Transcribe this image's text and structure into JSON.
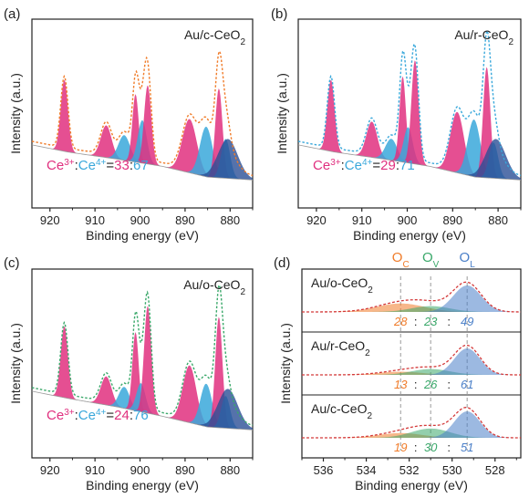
{
  "colors": {
    "magenta": "#e0307f",
    "cyan": "#3aa8db",
    "navy": "#2a4f96",
    "orange": "#f07c2a",
    "green": "#3aa86a",
    "blue": "#4a7fc8",
    "fit_red": "#d43a3a",
    "grey": "#9a9a9a"
  },
  "chart_data": [
    {
      "panel_label": "(a)",
      "type": "line",
      "sample": "Au/c-CeO",
      "sample_sub": "2",
      "xlabel": "Binding energy (eV)",
      "ylabel": "Intensity (a.u.)",
      "xlim": [
        924,
        875
      ],
      "xticks": [
        920,
        910,
        900,
        890,
        880
      ],
      "envelope_color": "#f07c2a",
      "ratio": {
        "ce3": "Ce",
        "ce3_sup": "3+",
        "colon1": ":",
        "ce4": "Ce",
        "ce4_sup": "4+",
        "eq": "=",
        "ce3_val": "33",
        "colon2": ":",
        "ce4_val": "67"
      },
      "baseline": [
        [
          924,
          0.55
        ],
        [
          916,
          0.45
        ],
        [
          905,
          0.35
        ],
        [
          895,
          0.25
        ],
        [
          885,
          0.1
        ],
        [
          875,
          0.06
        ]
      ],
      "peaks": [
        {
          "species": "Ce4+",
          "center": 916.8,
          "height": 1.0,
          "width": 0.8
        },
        {
          "species": "Ce4+",
          "center": 907.5,
          "height": 0.45,
          "width": 1.2
        },
        {
          "species": "Ce3+",
          "center": 903.5,
          "height": 0.35,
          "width": 1.3
        },
        {
          "species": "Ce4+",
          "center": 901.0,
          "height": 0.95,
          "width": 0.7
        },
        {
          "species": "Ce3+",
          "center": 899.5,
          "height": 0.6,
          "width": 1.0
        },
        {
          "species": "Ce4+",
          "center": 898.3,
          "height": 1.1,
          "width": 0.8
        },
        {
          "species": "Ce4+",
          "center": 889.0,
          "height": 0.75,
          "width": 1.6
        },
        {
          "species": "Ce3+",
          "center": 885.3,
          "height": 0.7,
          "width": 1.4
        },
        {
          "species": "Ce4+",
          "center": 882.5,
          "height": 1.25,
          "width": 0.8
        },
        {
          "species": "Ce3+",
          "center": 881.0,
          "height": 0.55,
          "width": 1.0
        }
      ]
    },
    {
      "panel_label": "(b)",
      "type": "line",
      "sample": "Au/r-CeO",
      "sample_sub": "2",
      "xlabel": "Binding energy (eV)",
      "ylabel": "Intensity (a.u.)",
      "xlim": [
        924,
        875
      ],
      "xticks": [
        920,
        910,
        900,
        890,
        880
      ],
      "envelope_color": "#3aa8db",
      "ratio": {
        "ce3": "Ce",
        "ce3_sup": "3+",
        "colon1": ":",
        "ce4": "Ce",
        "ce4_sup": "4+",
        "eq": "=",
        "ce3_val": "29",
        "colon2": ":",
        "ce4_val": "71"
      },
      "baseline": [
        [
          924,
          0.55
        ],
        [
          916,
          0.45
        ],
        [
          905,
          0.35
        ],
        [
          895,
          0.25
        ],
        [
          885,
          0.1
        ],
        [
          875,
          0.06
        ]
      ],
      "peaks": [
        {
          "species": "Ce4+",
          "center": 916.8,
          "height": 1.0,
          "width": 0.8
        },
        {
          "species": "Ce4+",
          "center": 907.8,
          "height": 0.5,
          "width": 1.2
        },
        {
          "species": "Ce3+",
          "center": 903.5,
          "height": 0.3,
          "width": 1.3
        },
        {
          "species": "Ce4+",
          "center": 901.0,
          "height": 1.2,
          "width": 0.7
        },
        {
          "species": "Ce3+",
          "center": 899.8,
          "height": 0.5,
          "width": 1.0
        },
        {
          "species": "Ce4+",
          "center": 898.3,
          "height": 1.45,
          "width": 0.8
        },
        {
          "species": "Ce4+",
          "center": 889.0,
          "height": 0.85,
          "width": 1.5
        },
        {
          "species": "Ce3+",
          "center": 885.3,
          "height": 0.8,
          "width": 1.4
        },
        {
          "species": "Ce4+",
          "center": 882.5,
          "height": 1.55,
          "width": 0.8
        },
        {
          "species": "Ce3+",
          "center": 881.0,
          "height": 0.5,
          "width": 1.0
        }
      ]
    },
    {
      "panel_label": "(c)",
      "type": "line",
      "sample": "Au/o-CeO",
      "sample_sub": "2",
      "xlabel": "Binding energy (eV)",
      "ylabel": "Intensity (a.u.)",
      "xlim": [
        924,
        875
      ],
      "xticks": [
        920,
        910,
        900,
        890,
        880
      ],
      "envelope_color": "#3aa86a",
      "ratio": {
        "ce3": "Ce",
        "ce3_sup": "3+",
        "colon1": ":",
        "ce4": "Ce",
        "ce4_sup": "4+",
        "eq": "=",
        "ce3_val": "24",
        "colon2": ":",
        "ce4_val": "76"
      },
      "baseline": [
        [
          924,
          0.6
        ],
        [
          916,
          0.5
        ],
        [
          905,
          0.38
        ],
        [
          895,
          0.25
        ],
        [
          885,
          0.1
        ],
        [
          875,
          0.06
        ]
      ],
      "peaks": [
        {
          "species": "Ce4+",
          "center": 916.8,
          "height": 1.0,
          "width": 0.8
        },
        {
          "species": "Ce4+",
          "center": 907.5,
          "height": 0.4,
          "width": 1.2
        },
        {
          "species": "Ce3+",
          "center": 903.5,
          "height": 0.3,
          "width": 1.2
        },
        {
          "species": "Ce4+",
          "center": 901.0,
          "height": 1.1,
          "width": 0.7
        },
        {
          "species": "Ce3+",
          "center": 899.8,
          "height": 0.4,
          "width": 1.0
        },
        {
          "species": "Ce4+",
          "center": 898.3,
          "height": 1.5,
          "width": 0.8
        },
        {
          "species": "Ce4+",
          "center": 889.0,
          "height": 0.8,
          "width": 1.5
        },
        {
          "species": "Ce3+",
          "center": 885.3,
          "height": 0.6,
          "width": 1.3
        },
        {
          "species": "Ce4+",
          "center": 882.5,
          "height": 1.55,
          "width": 0.8
        },
        {
          "species": "Ce3+",
          "center": 881.0,
          "height": 0.45,
          "width": 1.0
        }
      ]
    },
    {
      "panel_label": "(d)",
      "type": "line",
      "xlabel": "Binding energy (eV)",
      "ylabel": "Intensity (a.u.)",
      "xlim": [
        537,
        526.8
      ],
      "xticks": [
        536,
        534,
        532,
        530,
        528
      ],
      "component_labels": [
        {
          "main": "O",
          "sub": "C",
          "color": "#f07c2a",
          "position": 532.4
        },
        {
          "main": "O",
          "sub": "V",
          "color": "#3aa86a",
          "position": 531.0
        },
        {
          "main": "O",
          "sub": "L",
          "color": "#4a7fc8",
          "position": 529.3
        }
      ],
      "stacks": [
        {
          "sample": "Au/o-CeO",
          "sample_sub": "2",
          "values": [
            "28",
            "23",
            "49"
          ],
          "peaks": [
            {
              "comp": "O_C",
              "center": 532.4,
              "height": 0.32,
              "width": 1.1
            },
            {
              "comp": "O_V",
              "center": 531.0,
              "height": 0.22,
              "width": 0.9
            },
            {
              "comp": "O_L",
              "center": 529.3,
              "height": 1.0,
              "width": 0.65
            }
          ]
        },
        {
          "sample": "Au/r-CeO",
          "sample_sub": "2",
          "values": [
            "13",
            "26",
            "61"
          ],
          "peaks": [
            {
              "comp": "O_C",
              "center": 532.4,
              "height": 0.12,
              "width": 1.0
            },
            {
              "comp": "O_V",
              "center": 531.0,
              "height": 0.22,
              "width": 0.9
            },
            {
              "comp": "O_L",
              "center": 529.3,
              "height": 1.0,
              "width": 0.6
            }
          ]
        },
        {
          "sample": "Au/c-CeO",
          "sample_sub": "2",
          "values": [
            "19",
            "30",
            "51"
          ],
          "peaks": [
            {
              "comp": "O_C",
              "center": 532.4,
              "height": 0.18,
              "width": 1.0
            },
            {
              "comp": "O_V",
              "center": 531.0,
              "height": 0.35,
              "width": 0.9
            },
            {
              "comp": "O_L",
              "center": 529.3,
              "height": 1.0,
              "width": 0.6
            }
          ]
        }
      ]
    }
  ]
}
